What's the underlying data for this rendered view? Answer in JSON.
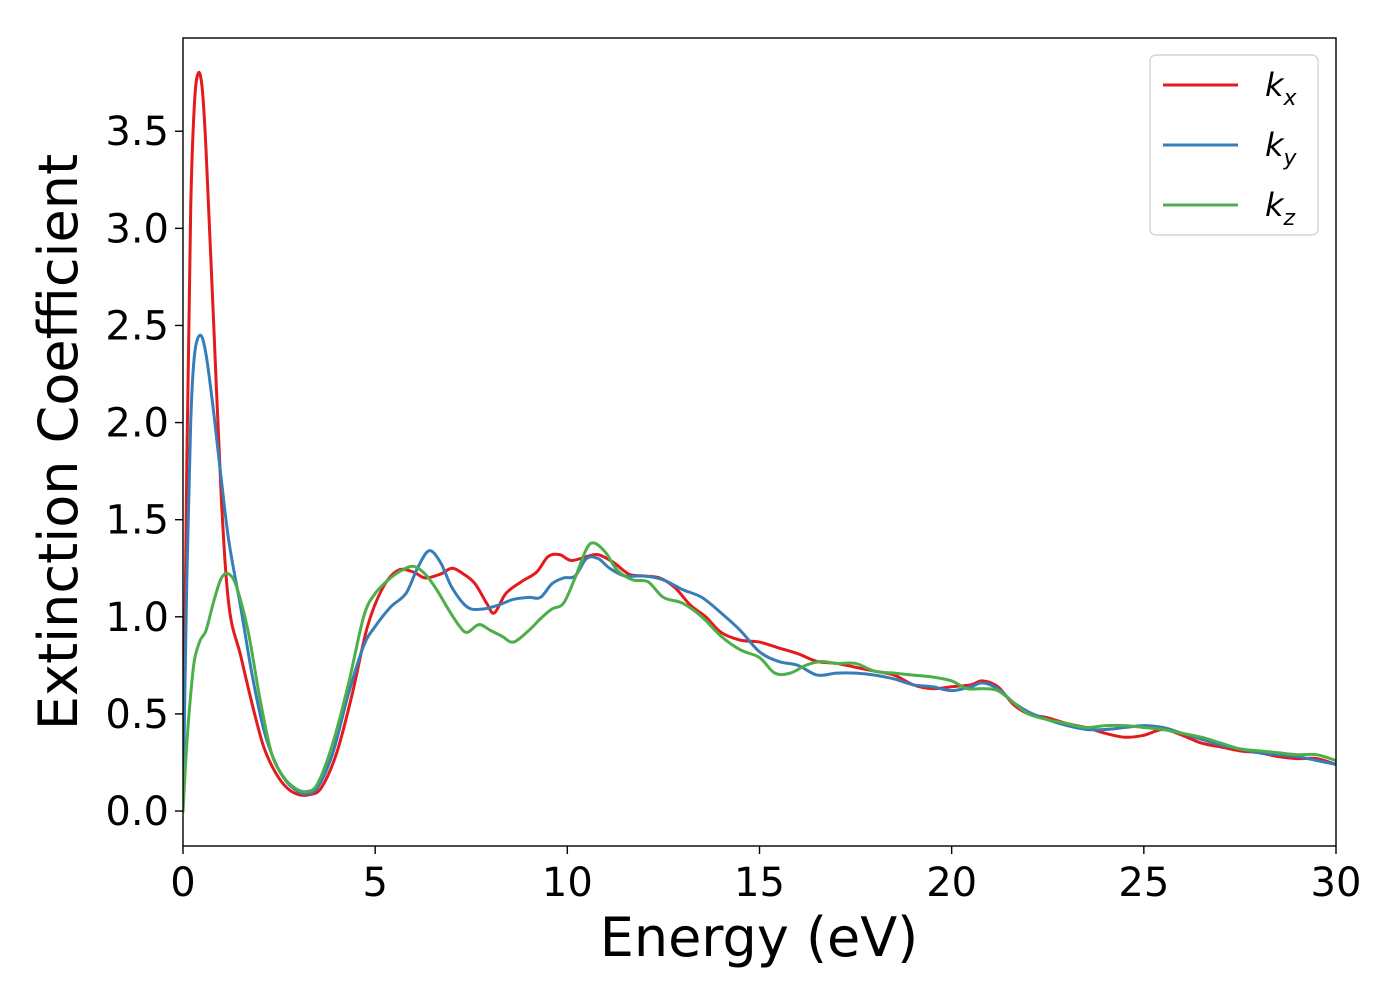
{
  "chart_data": {
    "type": "line",
    "xlabel": "Energy (eV)",
    "ylabel": "Extinction Coefficient",
    "xlim": [
      0,
      30
    ],
    "ylim": [
      -0.18,
      3.98
    ],
    "xticks": [
      0,
      5,
      10,
      15,
      20,
      25,
      30
    ],
    "xtick_labels": [
      "0",
      "5",
      "10",
      "15",
      "20",
      "25",
      "30"
    ],
    "yticks": [
      0.0,
      0.5,
      1.0,
      1.5,
      2.0,
      2.5,
      3.0,
      3.5
    ],
    "ytick_labels": [
      "0.0",
      "0.5",
      "1.0",
      "1.5",
      "2.0",
      "2.5",
      "3.0",
      "3.5"
    ],
    "grid": false,
    "legend_position": "top-right",
    "series": [
      {
        "name": "k",
        "subscript": "x",
        "color": "#e41a1c",
        "points": [
          [
            0,
            0
          ],
          [
            0.1,
            1.8
          ],
          [
            0.2,
            3.1
          ],
          [
            0.3,
            3.65
          ],
          [
            0.4,
            3.8
          ],
          [
            0.5,
            3.72
          ],
          [
            0.6,
            3.4
          ],
          [
            0.8,
            2.5
          ],
          [
            1.0,
            1.6
          ],
          [
            1.2,
            1.05
          ],
          [
            1.5,
            0.8
          ],
          [
            1.8,
            0.55
          ],
          [
            2.1,
            0.33
          ],
          [
            2.4,
            0.2
          ],
          [
            2.7,
            0.12
          ],
          [
            3.0,
            0.085
          ],
          [
            3.3,
            0.085
          ],
          [
            3.6,
            0.12
          ],
          [
            4.0,
            0.3
          ],
          [
            4.4,
            0.6
          ],
          [
            4.8,
            0.95
          ],
          [
            5.2,
            1.15
          ],
          [
            5.6,
            1.24
          ],
          [
            6.0,
            1.23
          ],
          [
            6.3,
            1.2
          ],
          [
            6.7,
            1.22
          ],
          [
            7.0,
            1.25
          ],
          [
            7.3,
            1.22
          ],
          [
            7.6,
            1.17
          ],
          [
            7.9,
            1.07
          ],
          [
            8.1,
            1.02
          ],
          [
            8.4,
            1.12
          ],
          [
            8.8,
            1.18
          ],
          [
            9.2,
            1.23
          ],
          [
            9.5,
            1.31
          ],
          [
            9.8,
            1.32
          ],
          [
            10.1,
            1.29
          ],
          [
            10.5,
            1.31
          ],
          [
            10.8,
            1.32
          ],
          [
            11.2,
            1.28
          ],
          [
            11.6,
            1.22
          ],
          [
            12.0,
            1.21
          ],
          [
            12.4,
            1.2
          ],
          [
            12.8,
            1.15
          ],
          [
            13.2,
            1.06
          ],
          [
            13.6,
            1.0
          ],
          [
            14.0,
            0.92
          ],
          [
            14.5,
            0.88
          ],
          [
            15.0,
            0.87
          ],
          [
            15.5,
            0.84
          ],
          [
            16.0,
            0.81
          ],
          [
            16.5,
            0.77
          ],
          [
            17.0,
            0.76
          ],
          [
            17.5,
            0.74
          ],
          [
            18.0,
            0.72
          ],
          [
            18.5,
            0.7
          ],
          [
            19.0,
            0.65
          ],
          [
            19.5,
            0.63
          ],
          [
            20.0,
            0.64
          ],
          [
            20.5,
            0.65
          ],
          [
            20.8,
            0.67
          ],
          [
            21.2,
            0.64
          ],
          [
            21.6,
            0.55
          ],
          [
            22.0,
            0.5
          ],
          [
            22.5,
            0.48
          ],
          [
            23.0,
            0.45
          ],
          [
            23.5,
            0.43
          ],
          [
            24.0,
            0.4
          ],
          [
            24.5,
            0.38
          ],
          [
            25.0,
            0.39
          ],
          [
            25.5,
            0.42
          ],
          [
            26.0,
            0.39
          ],
          [
            26.5,
            0.35
          ],
          [
            27.0,
            0.33
          ],
          [
            27.5,
            0.31
          ],
          [
            28.0,
            0.3
          ],
          [
            28.5,
            0.28
          ],
          [
            29.0,
            0.27
          ],
          [
            29.5,
            0.27
          ],
          [
            30.0,
            0.24
          ]
        ]
      },
      {
        "name": "k",
        "subscript": "y",
        "color": "#377eb8",
        "points": [
          [
            0,
            0
          ],
          [
            0.1,
            1.2
          ],
          [
            0.2,
            2.0
          ],
          [
            0.3,
            2.35
          ],
          [
            0.45,
            2.45
          ],
          [
            0.6,
            2.35
          ],
          [
            0.8,
            2.05
          ],
          [
            1.0,
            1.7
          ],
          [
            1.2,
            1.38
          ],
          [
            1.5,
            1.05
          ],
          [
            1.8,
            0.7
          ],
          [
            2.1,
            0.42
          ],
          [
            2.4,
            0.25
          ],
          [
            2.7,
            0.15
          ],
          [
            3.0,
            0.1
          ],
          [
            3.2,
            0.09
          ],
          [
            3.5,
            0.12
          ],
          [
            3.9,
            0.3
          ],
          [
            4.3,
            0.6
          ],
          [
            4.7,
            0.85
          ],
          [
            5.0,
            0.95
          ],
          [
            5.4,
            1.05
          ],
          [
            5.8,
            1.12
          ],
          [
            6.1,
            1.25
          ],
          [
            6.4,
            1.34
          ],
          [
            6.7,
            1.28
          ],
          [
            7.0,
            1.15
          ],
          [
            7.4,
            1.05
          ],
          [
            7.8,
            1.04
          ],
          [
            8.2,
            1.06
          ],
          [
            8.6,
            1.09
          ],
          [
            9.0,
            1.1
          ],
          [
            9.3,
            1.1
          ],
          [
            9.6,
            1.17
          ],
          [
            9.9,
            1.2
          ],
          [
            10.2,
            1.21
          ],
          [
            10.5,
            1.3
          ],
          [
            10.8,
            1.3
          ],
          [
            11.1,
            1.25
          ],
          [
            11.5,
            1.21
          ],
          [
            12.0,
            1.21
          ],
          [
            12.5,
            1.19
          ],
          [
            13.0,
            1.14
          ],
          [
            13.5,
            1.1
          ],
          [
            14.0,
            1.02
          ],
          [
            14.5,
            0.93
          ],
          [
            15.0,
            0.82
          ],
          [
            15.5,
            0.77
          ],
          [
            16.0,
            0.75
          ],
          [
            16.5,
            0.7
          ],
          [
            17.0,
            0.71
          ],
          [
            17.5,
            0.71
          ],
          [
            18.0,
            0.7
          ],
          [
            18.5,
            0.68
          ],
          [
            19.0,
            0.65
          ],
          [
            19.5,
            0.64
          ],
          [
            20.0,
            0.62
          ],
          [
            20.5,
            0.64
          ],
          [
            20.8,
            0.66
          ],
          [
            21.2,
            0.63
          ],
          [
            21.6,
            0.56
          ],
          [
            22.0,
            0.51
          ],
          [
            22.5,
            0.47
          ],
          [
            23.0,
            0.44
          ],
          [
            23.5,
            0.42
          ],
          [
            24.0,
            0.42
          ],
          [
            24.5,
            0.43
          ],
          [
            25.0,
            0.44
          ],
          [
            25.5,
            0.43
          ],
          [
            26.0,
            0.4
          ],
          [
            26.5,
            0.37
          ],
          [
            27.0,
            0.34
          ],
          [
            27.5,
            0.32
          ],
          [
            28.0,
            0.3
          ],
          [
            28.5,
            0.29
          ],
          [
            29.0,
            0.28
          ],
          [
            29.5,
            0.26
          ],
          [
            30.0,
            0.24
          ]
        ]
      },
      {
        "name": "k",
        "subscript": "z",
        "color": "#4daf4a",
        "points": [
          [
            0,
            0
          ],
          [
            0.1,
            0.35
          ],
          [
            0.2,
            0.6
          ],
          [
            0.3,
            0.78
          ],
          [
            0.45,
            0.88
          ],
          [
            0.6,
            0.93
          ],
          [
            0.8,
            1.08
          ],
          [
            1.0,
            1.2
          ],
          [
            1.2,
            1.22
          ],
          [
            1.4,
            1.15
          ],
          [
            1.7,
            0.92
          ],
          [
            2.0,
            0.58
          ],
          [
            2.3,
            0.3
          ],
          [
            2.6,
            0.18
          ],
          [
            2.9,
            0.12
          ],
          [
            3.2,
            0.1
          ],
          [
            3.5,
            0.14
          ],
          [
            3.9,
            0.35
          ],
          [
            4.3,
            0.65
          ],
          [
            4.7,
            1.0
          ],
          [
            5.0,
            1.12
          ],
          [
            5.4,
            1.2
          ],
          [
            5.7,
            1.24
          ],
          [
            6.0,
            1.26
          ],
          [
            6.3,
            1.22
          ],
          [
            6.6,
            1.14
          ],
          [
            6.9,
            1.04
          ],
          [
            7.2,
            0.95
          ],
          [
            7.4,
            0.92
          ],
          [
            7.7,
            0.96
          ],
          [
            8.0,
            0.93
          ],
          [
            8.3,
            0.9
          ],
          [
            8.6,
            0.87
          ],
          [
            9.0,
            0.93
          ],
          [
            9.3,
            0.99
          ],
          [
            9.6,
            1.04
          ],
          [
            9.9,
            1.07
          ],
          [
            10.2,
            1.2
          ],
          [
            10.5,
            1.35
          ],
          [
            10.7,
            1.38
          ],
          [
            11.0,
            1.33
          ],
          [
            11.3,
            1.24
          ],
          [
            11.7,
            1.19
          ],
          [
            12.1,
            1.18
          ],
          [
            12.5,
            1.1
          ],
          [
            13.0,
            1.07
          ],
          [
            13.5,
            1.0
          ],
          [
            14.0,
            0.9
          ],
          [
            14.5,
            0.83
          ],
          [
            15.0,
            0.79
          ],
          [
            15.4,
            0.71
          ],
          [
            15.8,
            0.71
          ],
          [
            16.2,
            0.75
          ],
          [
            16.6,
            0.77
          ],
          [
            17.0,
            0.76
          ],
          [
            17.5,
            0.76
          ],
          [
            18.0,
            0.72
          ],
          [
            18.5,
            0.71
          ],
          [
            19.0,
            0.7
          ],
          [
            19.5,
            0.69
          ],
          [
            20.0,
            0.67
          ],
          [
            20.4,
            0.63
          ],
          [
            20.8,
            0.63
          ],
          [
            21.2,
            0.62
          ],
          [
            21.6,
            0.56
          ],
          [
            22.0,
            0.5
          ],
          [
            22.5,
            0.47
          ],
          [
            23.0,
            0.45
          ],
          [
            23.5,
            0.43
          ],
          [
            24.0,
            0.44
          ],
          [
            24.5,
            0.44
          ],
          [
            25.0,
            0.43
          ],
          [
            25.5,
            0.42
          ],
          [
            26.0,
            0.4
          ],
          [
            26.5,
            0.38
          ],
          [
            27.0,
            0.35
          ],
          [
            27.5,
            0.32
          ],
          [
            28.0,
            0.31
          ],
          [
            28.5,
            0.3
          ],
          [
            29.0,
            0.29
          ],
          [
            29.5,
            0.29
          ],
          [
            30.0,
            0.26
          ]
        ]
      }
    ]
  }
}
